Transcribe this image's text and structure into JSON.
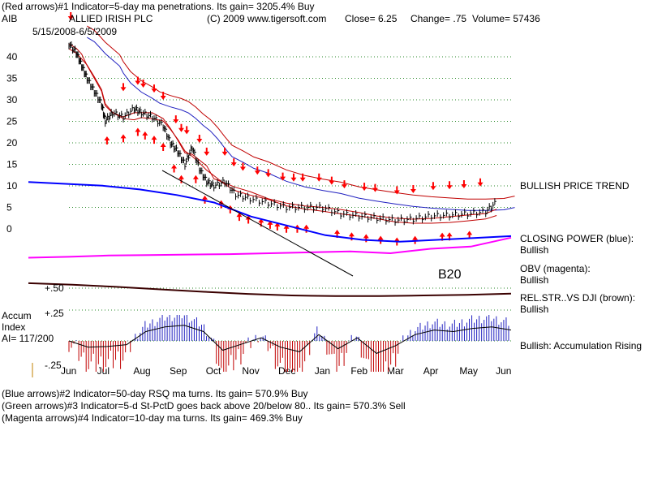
{
  "header": {
    "line1": "(Red arrows)#1 Indicator=5-day ma penetrations. Its gain= 3205.4% Buy",
    "ticker": "AIB",
    "company": "ALLIED IRISH PLC",
    "copyright": "(C) 2009 www.tigersoft.com",
    "close": "Close=  6.25",
    "change": "Change= .75",
    "volume": "Volume= 57436",
    "date_range": "5/15/2008-6/5/2009"
  },
  "right_labels": {
    "trend": "BULLISH PRICE TREND",
    "closing_power": "CLOSING POWER (blue):",
    "closing_power_status": "Bullish",
    "obv": "OBV (magenta):",
    "obv_status": "Bullish",
    "relstr": "REL.STR..VS DJI (brown):",
    "relstr_status": "Bullish",
    "accum": "Bullish: Accumulation Rising"
  },
  "left_labels": {
    "accum_title": "Accum",
    "index_title": "Index",
    "ai_value": "AI= 117/200",
    "plus50": "+.50",
    "plus25": "+.25",
    "minus25": "-.25"
  },
  "annotation": "B20",
  "footer": {
    "line1": "(Blue arrows)#2 Indicator=50-day RSQ ma turns. Its gain= 570.9% Buy",
    "line2": "(Green arrows)#3 Indicator=5-d St-PctD goes back above 20/below 80.. Its gain= 570.3% Sell",
    "line3": "(Magenta arrows)#4 Indicator=10-day ma turns. Its gain= 469.3% Buy"
  },
  "chart_data": {
    "type": "line",
    "price_axis_ticks": [
      "40",
      "35",
      "30",
      "25",
      "20",
      "15",
      "10",
      "5",
      "0"
    ],
    "y_ticks_values": [
      40,
      35,
      30,
      25,
      20,
      15,
      10,
      5,
      0
    ],
    "ylim": [
      0,
      42
    ],
    "x_tick_labels": [
      "Jun",
      "Jul",
      "Aug",
      "Sep",
      "Oct",
      "Nov",
      "Dec",
      "Jan",
      "Feb",
      "Mar",
      "Apr",
      "May",
      "Jun"
    ],
    "price_series": [
      {
        "t": 0,
        "v": 43
      },
      {
        "t": 0.2,
        "v": 41
      },
      {
        "t": 0.35,
        "v": 38
      },
      {
        "t": 0.5,
        "v": 35
      },
      {
        "t": 0.7,
        "v": 32
      },
      {
        "t": 0.9,
        "v": 29
      },
      {
        "t": 1.0,
        "v": 25
      },
      {
        "t": 1.2,
        "v": 27
      },
      {
        "t": 1.5,
        "v": 26
      },
      {
        "t": 1.8,
        "v": 28
      },
      {
        "t": 2.0,
        "v": 27
      },
      {
        "t": 2.3,
        "v": 26
      },
      {
        "t": 2.6,
        "v": 24
      },
      {
        "t": 2.8,
        "v": 20
      },
      {
        "t": 3.0,
        "v": 18
      },
      {
        "t": 3.2,
        "v": 15
      },
      {
        "t": 3.4,
        "v": 19
      },
      {
        "t": 3.6,
        "v": 14
      },
      {
        "t": 3.8,
        "v": 11
      },
      {
        "t": 4.0,
        "v": 10
      },
      {
        "t": 4.3,
        "v": 11
      },
      {
        "t": 4.6,
        "v": 8
      },
      {
        "t": 5.0,
        "v": 7
      },
      {
        "t": 5.5,
        "v": 6
      },
      {
        "t": 6.0,
        "v": 5
      },
      {
        "t": 6.5,
        "v": 5
      },
      {
        "t": 7.0,
        "v": 5
      },
      {
        "t": 7.5,
        "v": 3.5
      },
      {
        "t": 8.0,
        "v": 3
      },
      {
        "t": 8.5,
        "v": 2.5
      },
      {
        "t": 9.0,
        "v": 2
      },
      {
        "t": 9.5,
        "v": 2.3
      },
      {
        "t": 10.0,
        "v": 3
      },
      {
        "t": 10.5,
        "v": 3.2
      },
      {
        "t": 11.0,
        "v": 3.5
      },
      {
        "t": 11.5,
        "v": 4
      },
      {
        "t": 11.8,
        "v": 6.25
      }
    ],
    "red_up_arrows_t": [
      1.05,
      1.5,
      1.9,
      2.1,
      2.35,
      2.6,
      2.9,
      3.1,
      3.5,
      3.75,
      4.2,
      4.45,
      4.7,
      4.95,
      5.3,
      5.55,
      5.75,
      6.0,
      6.3,
      6.55,
      7.4,
      7.8,
      8.2,
      8.6,
      9.05,
      9.55,
      10.3,
      10.5,
      11.05
    ],
    "red_down_arrows_t": [
      0.05,
      1.5,
      1.9,
      2.05,
      2.35,
      2.6,
      2.95,
      3.1,
      3.25,
      3.6,
      3.8,
      4.3,
      4.55,
      4.8,
      5.2,
      5.5,
      5.9,
      6.2,
      6.45,
      6.9,
      7.25,
      7.6,
      8.15,
      8.45,
      9.05,
      9.5,
      10.05,
      10.5,
      10.9,
      11.35
    ],
    "closing_power_level": [
      0.92,
      0.9,
      0.88,
      0.84,
      0.78,
      0.7,
      0.55,
      0.45,
      0.35,
      0.3,
      0.28,
      0.3,
      0.32,
      0.34
    ],
    "obv_level": [
      0.5,
      0.52,
      0.55,
      0.56,
      0.57,
      0.58,
      0.6,
      0.62,
      0.64,
      0.6,
      0.7,
      0.75,
      0.95
    ],
    "relstr_level": [
      0.5,
      0.45,
      0.38,
      0.3,
      0.22,
      0.15,
      0.1,
      0.08,
      0.08,
      0.1,
      0.12,
      0.16
    ],
    "accum_index": [
      0.0,
      -0.2,
      -0.18,
      -0.12,
      0.3,
      0.45,
      0.5,
      0.3,
      -0.3,
      -0.1,
      0.1,
      -0.2,
      -0.35,
      0.2,
      -0.25,
      0.1,
      -0.4,
      -0.15,
      0.2,
      0.35,
      0.3,
      0.4,
      0.45,
      0.35
    ],
    "accum_ylim": [
      -0.25,
      0.5
    ]
  }
}
